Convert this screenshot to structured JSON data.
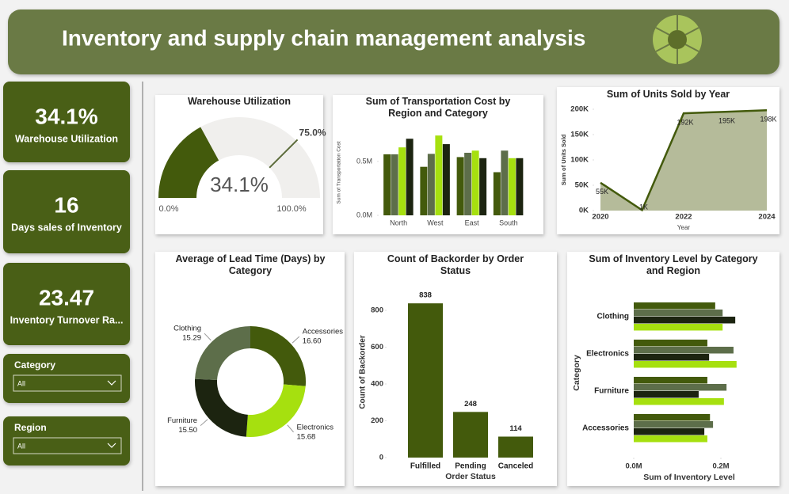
{
  "header": {
    "title": "Inventory and supply chain management analysis"
  },
  "kpis": [
    {
      "value": "34.1%",
      "label": "Warehouse Utilization"
    },
    {
      "value": "16",
      "label": "Days sales of Inventory"
    },
    {
      "value": "23.47",
      "label": "Inventory Turnover Ra..."
    }
  ],
  "filters": [
    {
      "label": "Category",
      "selection": "All"
    },
    {
      "label": "Region",
      "selection": "All"
    }
  ],
  "chart_data": [
    {
      "type": "gauge",
      "title": "Warehouse Utilization",
      "value": 34.1,
      "value_label": "34.1%",
      "range": [
        {
          "value": 0,
          "label": "0.0%"
        },
        {
          "value": 100,
          "label": "100.0%"
        }
      ],
      "target": {
        "value": 75,
        "label": "75.0%"
      },
      "color": "#435a0c",
      "track_color": "#f0efed",
      "target_color": "#5b6b3a"
    },
    {
      "type": "grouped_bar",
      "title": "Sum of Transportation Cost by Region and Category",
      "y_label": "Sum of Transportation Cost",
      "categories": [
        "North",
        "West",
        "East",
        "South"
      ],
      "series": [
        {
          "color": "#435a0c",
          "values": [
            566000,
            450000,
            540000,
            400000
          ]
        },
        {
          "color": "#5d6e4a",
          "values": [
            566000,
            570000,
            580000,
            600000
          ]
        },
        {
          "color": "#a6e00f",
          "values": [
            630000,
            740000,
            600000,
            530000
          ]
        },
        {
          "color": "#1c2410",
          "values": [
            710000,
            660000,
            530000,
            530000
          ]
        }
      ],
      "ylim": [
        0,
        800000
      ],
      "yticks": [
        {
          "value": 0,
          "label": "0.0M"
        },
        {
          "value": 500000,
          "label": "0.5M"
        }
      ]
    },
    {
      "type": "area",
      "title": "Sum of Units Sold by Year",
      "x_label": "Year",
      "y_label": "Sum of Units Sold",
      "x": [
        2020,
        2021,
        2022,
        2023,
        2024
      ],
      "values": [
        55000,
        1000,
        192000,
        195000,
        198000
      ],
      "value_labels": [
        "55K",
        "1K",
        "192K",
        "195K",
        "198K"
      ],
      "color": "#435a0c",
      "fill": "#b5bb9a",
      "xlim": [
        2020,
        2024
      ],
      "xticks": [
        2020,
        2022,
        2024
      ],
      "ylim": [
        0,
        200000
      ],
      "yticks": [
        {
          "value": 0,
          "label": "0K"
        },
        {
          "value": 50000,
          "label": "50K"
        },
        {
          "value": 100000,
          "label": "100K"
        },
        {
          "value": 150000,
          "label": "150K"
        },
        {
          "value": 200000,
          "label": "200K"
        }
      ]
    },
    {
      "type": "donut",
      "title": "Average of Lead Time (Days) by Category",
      "categories": [
        "Accessories",
        "Electronics",
        "Furniture",
        "Clothing"
      ],
      "values": [
        16.6,
        15.68,
        15.5,
        15.29
      ],
      "value_labels": [
        "16.60",
        "15.68",
        "15.50",
        "15.29"
      ],
      "colors": [
        "#435a0c",
        "#a6e00f",
        "#1c2410",
        "#5d6e4a"
      ]
    },
    {
      "type": "bar",
      "title": "Count of Backorder by Order Status",
      "x_label": "Order Status",
      "y_label": "Count of Backorder",
      "categories": [
        "Fulfilled",
        "Pending",
        "Canceled"
      ],
      "values": [
        838,
        248,
        114
      ],
      "color": "#435a0c",
      "ylim": [
        0,
        900
      ],
      "yticks": [
        0,
        200,
        400,
        600,
        800
      ]
    },
    {
      "type": "hbar_grouped",
      "title": "Sum of Inventory Level by Category and Region",
      "x_label": "Sum of Inventory Level",
      "y_label": "Category",
      "categories": [
        "Clothing",
        "Electronics",
        "Furniture",
        "Accessories"
      ],
      "series": [
        {
          "color": "#435a0c",
          "values": [
            187000,
            169000,
            169000,
            175000
          ]
        },
        {
          "color": "#5d6e4a",
          "values": [
            204000,
            229000,
            213000,
            182000
          ]
        },
        {
          "color": "#1c2410",
          "values": [
            233000,
            173000,
            149000,
            162000
          ]
        },
        {
          "color": "#a6e00f",
          "values": [
            204000,
            236000,
            207000,
            169000
          ]
        }
      ],
      "xlim": [
        0,
        250000
      ],
      "xticks": [
        {
          "value": 0,
          "label": "0.0M"
        },
        {
          "value": 200000,
          "label": "0.2M"
        }
      ]
    }
  ]
}
